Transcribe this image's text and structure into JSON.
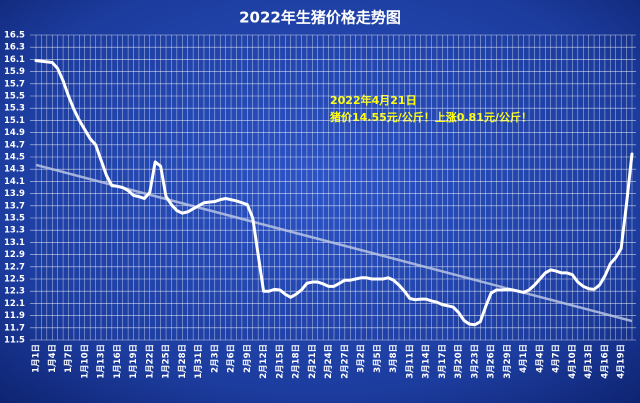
{
  "chart_data": {
    "type": "line",
    "title": "2022年生猪价格走势图",
    "annotations": [
      "2022年4月21日",
      "猪价14.55元/公斤！上涨0.81元/公斤！"
    ],
    "categories": [
      "1月1日",
      null,
      null,
      "1月4日",
      null,
      null,
      "1月7日",
      null,
      null,
      "1月10日",
      null,
      null,
      "1月13日",
      null,
      null,
      "1月16日",
      null,
      null,
      "1月19日",
      null,
      null,
      "1月22日",
      null,
      null,
      "1月25日",
      null,
      null,
      "1月28日",
      null,
      null,
      "1月31日",
      null,
      null,
      "2月3日",
      null,
      null,
      "2月6日",
      null,
      null,
      "2月9日",
      null,
      null,
      "2月12日",
      null,
      null,
      "2月15日",
      null,
      null,
      "2月18日",
      null,
      null,
      "2月21日",
      null,
      null,
      "2月24日",
      null,
      null,
      "2月27日",
      null,
      null,
      "3月2日",
      null,
      null,
      "3月5日",
      null,
      null,
      "3月8日",
      null,
      null,
      "3月11日",
      null,
      null,
      "3月14日",
      null,
      null,
      "3月17日",
      null,
      null,
      "3月20日",
      null,
      null,
      "3月23日",
      null,
      null,
      "3月26日",
      null,
      null,
      "3月29日",
      null,
      null,
      "4月1日",
      null,
      null,
      "4月4日",
      null,
      null,
      "4月7日",
      null,
      null,
      "4月10日",
      null,
      null,
      "4月13日",
      null,
      null,
      "4月16日",
      null,
      null,
      "4月19日",
      null,
      null
    ],
    "values": [
      16.08,
      16.07,
      16.06,
      16.05,
      15.95,
      15.75,
      15.5,
      15.28,
      15.1,
      14.95,
      14.8,
      14.7,
      14.45,
      14.2,
      14.03,
      14.02,
      14.0,
      13.95,
      13.87,
      13.85,
      13.82,
      13.92,
      14.42,
      14.35,
      13.85,
      13.72,
      13.62,
      13.58,
      13.6,
      13.65,
      13.7,
      13.75,
      13.76,
      13.77,
      13.8,
      13.82,
      13.8,
      13.78,
      13.75,
      13.72,
      13.5,
      12.9,
      12.3,
      12.3,
      12.33,
      12.32,
      12.25,
      12.2,
      12.25,
      12.32,
      12.43,
      12.45,
      12.45,
      12.42,
      12.38,
      12.38,
      12.43,
      12.48,
      12.48,
      12.5,
      12.52,
      12.52,
      12.5,
      12.5,
      12.5,
      12.52,
      12.48,
      12.4,
      12.3,
      12.18,
      12.16,
      12.17,
      12.17,
      12.14,
      12.12,
      12.08,
      12.06,
      12.04,
      11.95,
      11.82,
      11.76,
      11.75,
      11.8,
      12.05,
      12.27,
      12.32,
      12.32,
      12.33,
      12.32,
      12.3,
      12.28,
      12.32,
      12.4,
      12.5,
      12.6,
      12.65,
      12.63,
      12.6,
      12.6,
      12.57,
      12.45,
      12.38,
      12.34,
      12.33,
      12.4,
      12.55,
      12.75,
      12.85,
      13.0,
      13.74,
      14.55
    ],
    "color": "#ffffff",
    "trend_values": [
      14.37,
      11.81
    ],
    "trend_color": "#b9c4e4",
    "ylim": [
      11.5,
      16.5
    ],
    "yticks": [
      11.5,
      11.7,
      11.9,
      12.1,
      12.3,
      12.5,
      12.7,
      12.9,
      13.1,
      13.3,
      13.5,
      13.7,
      13.9,
      14.1,
      14.3,
      14.5,
      14.7,
      14.9,
      15.1,
      15.3,
      15.5,
      15.7,
      15.9,
      16.1,
      16.3,
      16.5
    ],
    "grid": true
  }
}
